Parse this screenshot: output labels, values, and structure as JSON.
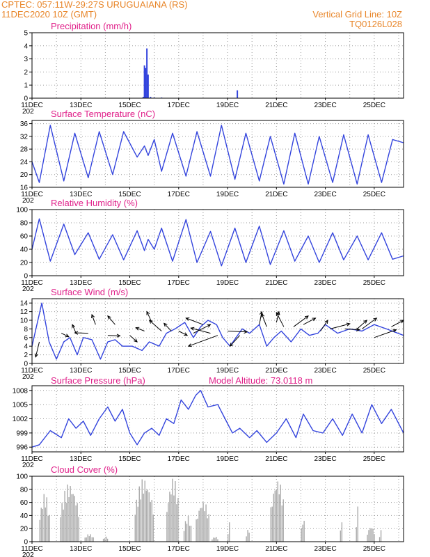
{
  "header": {
    "line1": "CPTEC:   057:11W-29:27S   URUGUAIANA (RS)",
    "line2": "11DEC2020  10Z (GMT)",
    "right1": "Vertical Grid Line: 10Z",
    "right2": "TQ0126L028"
  },
  "x_labels": [
    "11DEC",
    "13DEC",
    "15DEC",
    "17DEC",
    "19DEC",
    "21DEC",
    "23DEC",
    "25DEC"
  ],
  "x_cut_label": "202",
  "model_altitude": "Model Altitude: 73.0118 m",
  "colors": {
    "line": "#3344dd",
    "cloud": "#aaaaaa",
    "title": "#e0218a",
    "header": "#e8862a",
    "grid": "#999999"
  },
  "chart_data": [
    {
      "type": "bar",
      "title": "Precipitation (mm/h)",
      "ylim": [
        0,
        5
      ],
      "yticks": [
        0,
        1,
        2,
        3,
        4,
        5
      ],
      "x_unit": "day index from 11DEC 10Z",
      "series": [
        {
          "x": [
            4.55,
            4.6,
            4.65,
            4.7,
            4.75,
            4.85,
            5.0,
            5.3,
            8.4
          ],
          "values": [
            0.1,
            2.5,
            2.3,
            3.8,
            1.8,
            0.1,
            0.05,
            0.05,
            0.6
          ]
        }
      ]
    },
    {
      "type": "line",
      "title": "Surface Temperature (nC)",
      "ylim": [
        16,
        37
      ],
      "yticks": [
        16,
        20,
        24,
        28,
        32,
        36
      ],
      "series": [
        {
          "x": [
            0,
            0.3,
            0.75,
            1.3,
            1.75,
            2.3,
            2.75,
            3.3,
            3.75,
            4.3,
            4.6,
            4.75,
            5.0,
            5.3,
            5.75,
            6.3,
            6.75,
            7.3,
            7.75,
            8.3,
            8.75,
            9.3,
            9.75,
            10.3,
            10.75,
            11.3,
            11.75,
            12.3,
            12.75,
            13.3,
            13.75,
            14.3,
            14.75,
            15.2
          ],
          "values": [
            24,
            17.5,
            35.5,
            18,
            33,
            19,
            33.5,
            20,
            33.5,
            25.5,
            29,
            26,
            31,
            21,
            33,
            19.5,
            33.5,
            19.5,
            35.5,
            18.5,
            33,
            18,
            32,
            17,
            33,
            17,
            32,
            17.5,
            32.5,
            17,
            32.5,
            17.5,
            31,
            30
          ]
        }
      ]
    },
    {
      "type": "line",
      "title": "Relative Humidity (%)",
      "ylim": [
        0,
        100
      ],
      "yticks": [
        0,
        20,
        40,
        60,
        80,
        100
      ],
      "series": [
        {
          "x": [
            0,
            0.3,
            0.75,
            1.3,
            1.75,
            2.3,
            2.75,
            3.3,
            3.75,
            4.3,
            4.6,
            4.75,
            5.0,
            5.3,
            5.75,
            6.3,
            6.75,
            7.3,
            7.75,
            8.3,
            8.75,
            9.3,
            9.75,
            10.3,
            10.75,
            11.3,
            11.75,
            12.3,
            12.75,
            13.3,
            13.75,
            14.3,
            14.75,
            15.2
          ],
          "values": [
            40,
            86,
            22,
            78,
            32,
            65,
            25,
            62,
            24,
            68,
            38,
            55,
            40,
            72,
            22,
            85,
            20,
            67,
            15,
            72,
            20,
            75,
            17,
            68,
            22,
            60,
            20,
            65,
            24,
            60,
            24,
            65,
            25,
            30
          ]
        }
      ]
    },
    {
      "type": "line",
      "title": "Surface Wind (m/s)",
      "ylim": [
        0,
        15
      ],
      "yticks": [
        0,
        2,
        4,
        6,
        8,
        10,
        12,
        14
      ],
      "series": [
        {
          "x": [
            0,
            0.4,
            0.7,
            1.0,
            1.3,
            1.55,
            1.85,
            2.1,
            2.45,
            2.8,
            3.1,
            3.4,
            3.7,
            4.1,
            4.5,
            4.8,
            5.2,
            5.5,
            5.85,
            6.25,
            6.6,
            6.9,
            7.2,
            7.55,
            7.8,
            8.1,
            8.35,
            8.6,
            8.9,
            9.3,
            9.6,
            9.9,
            10.2,
            10.6,
            11.0,
            11.35,
            11.7,
            12.0,
            12.5,
            13.0,
            13.5,
            14.0,
            14.5,
            15.2
          ],
          "values": [
            4,
            14,
            5,
            1,
            5,
            6,
            2,
            6,
            5.5,
            1,
            5,
            5.5,
            4,
            4,
            3,
            5,
            4,
            7,
            8,
            9.5,
            6,
            8.5,
            10,
            9,
            6,
            4,
            6,
            8,
            7,
            9,
            4,
            6,
            7.5,
            5,
            8,
            6.5,
            7,
            9,
            7,
            8,
            7.5,
            9,
            8,
            6.5
          ]
        }
      ],
      "vectors": [
        {
          "x": 0.3,
          "y": 5,
          "dx": -0.15,
          "dy": -3.5
        },
        {
          "x": 1.2,
          "y": 7,
          "dx": 0.3,
          "dy": -0.8
        },
        {
          "x": 1.8,
          "y": 7,
          "dx": -0.15,
          "dy": 2
        },
        {
          "x": 2.3,
          "y": 7,
          "dx": -0.55,
          "dy": 0.1
        },
        {
          "x": 2.6,
          "y": 9,
          "dx": -0.15,
          "dy": 2.3
        },
        {
          "x": 3.1,
          "y": 6.5,
          "dx": 0.5,
          "dy": -0.1
        },
        {
          "x": 3.4,
          "y": 9,
          "dx": -0.3,
          "dy": 2
        },
        {
          "x": 4.0,
          "y": 6.5,
          "dx": 0.3,
          "dy": -1.5
        },
        {
          "x": 4.6,
          "y": 7.5,
          "dx": -0.35,
          "dy": 0.8
        },
        {
          "x": 4.9,
          "y": 9.5,
          "dx": -0.2,
          "dy": 2.5
        },
        {
          "x": 5.3,
          "y": 7.5,
          "dx": -0.5,
          "dy": 2.5
        },
        {
          "x": 5.7,
          "y": 7.5,
          "dx": -0.3,
          "dy": 1.8
        },
        {
          "x": 6.0,
          "y": 7.5,
          "dx": 0.35,
          "dy": -1
        },
        {
          "x": 6.6,
          "y": 7,
          "dx": 0.7,
          "dy": 2
        },
        {
          "x": 7.0,
          "y": 9,
          "dx": -0.7,
          "dy": 1.5
        },
        {
          "x": 7.3,
          "y": 7,
          "dx": -0.8,
          "dy": 1.2
        },
        {
          "x": 7.6,
          "y": 6.5,
          "dx": -1.2,
          "dy": -2.5
        },
        {
          "x": 8.0,
          "y": 7.5,
          "dx": 0.8,
          "dy": -0.2
        },
        {
          "x": 8.5,
          "y": 6.5,
          "dx": -0.4,
          "dy": -2.5
        },
        {
          "x": 9.3,
          "y": 9,
          "dx": 0.1,
          "dy": 3
        },
        {
          "x": 9.6,
          "y": 8.5,
          "dx": -0.2,
          "dy": 3
        },
        {
          "x": 10.0,
          "y": 9.5,
          "dx": 0.1,
          "dy": 2.5
        },
        {
          "x": 10.3,
          "y": 8.5,
          "dx": -0.3,
          "dy": 3.3
        },
        {
          "x": 10.7,
          "y": 8.5,
          "dx": 0.6,
          "dy": 2.5
        },
        {
          "x": 11.1,
          "y": 9,
          "dx": 0.5,
          "dy": 1.5
        },
        {
          "x": 11.8,
          "y": 7.5,
          "dx": 0.3,
          "dy": 2.5
        },
        {
          "x": 12.2,
          "y": 8,
          "dx": 0.8,
          "dy": 1.2
        },
        {
          "x": 12.8,
          "y": 8,
          "dx": 0.6,
          "dy": -0.2
        },
        {
          "x": 13.3,
          "y": 8,
          "dx": 0.4,
          "dy": 2
        },
        {
          "x": 13.5,
          "y": 8,
          "dx": 0.6,
          "dy": 2.5
        },
        {
          "x": 14.0,
          "y": 6,
          "dx": 0.9,
          "dy": 1.8
        },
        {
          "x": 14.7,
          "y": 8.5,
          "dx": 0.5,
          "dy": 1.5
        }
      ]
    },
    {
      "type": "line",
      "title": "Surface Pressure (hPa)",
      "ylim": [
        995,
        1009
      ],
      "yticks": [
        996,
        999,
        1002,
        1005,
        1008
      ],
      "series": [
        {
          "x": [
            0,
            0.3,
            0.75,
            1.2,
            1.5,
            1.8,
            2.1,
            2.4,
            2.75,
            3.1,
            3.4,
            3.7,
            4.0,
            4.3,
            4.6,
            4.9,
            5.2,
            5.5,
            5.8,
            6.1,
            6.4,
            6.7,
            6.9,
            7.2,
            7.6,
            7.9,
            8.2,
            8.5,
            8.9,
            9.2,
            9.6,
            10.0,
            10.4,
            10.8,
            11.1,
            11.5,
            11.9,
            12.3,
            12.7,
            13.1,
            13.5,
            13.9,
            14.3,
            14.7,
            15.2
          ],
          "values": [
            996,
            996.5,
            999.5,
            998,
            1002,
            1000,
            1001.5,
            998.5,
            1002,
            1004.5,
            1001.5,
            1004,
            999,
            996.5,
            999,
            1000,
            998.5,
            1002,
            1001,
            1006,
            1004,
            1007,
            1008,
            1004.5,
            1005,
            1002,
            999,
            1000,
            998,
            999.5,
            997,
            999,
            1002,
            998,
            1003,
            999.5,
            999,
            1002,
            998.5,
            1003,
            999,
            1005,
            1001,
            1004,
            999
          ]
        }
      ]
    },
    {
      "type": "bar",
      "title": "Cloud Cover (%)",
      "ylim": [
        0,
        100
      ],
      "yticks": [
        0,
        20,
        40,
        60,
        80,
        100
      ],
      "segments": [
        [
          0.3,
          0.7,
          75
        ],
        [
          1.15,
          1.9,
          92
        ],
        [
          2.15,
          2.5,
          12
        ],
        [
          2.9,
          3.1,
          8
        ],
        [
          4.2,
          4.95,
          100
        ],
        [
          5.5,
          6.0,
          100
        ],
        [
          6.2,
          6.5,
          40
        ],
        [
          6.7,
          7.25,
          65
        ],
        [
          7.35,
          7.6,
          8
        ],
        [
          8.0,
          8.1,
          30
        ],
        [
          8.75,
          8.9,
          20
        ],
        [
          9.75,
          10.3,
          100
        ],
        [
          11.0,
          11.15,
          38
        ],
        [
          12.6,
          12.7,
          35
        ],
        [
          13.25,
          13.35,
          55
        ],
        [
          13.7,
          14.0,
          25
        ],
        [
          14.2,
          14.3,
          18
        ]
      ]
    }
  ]
}
